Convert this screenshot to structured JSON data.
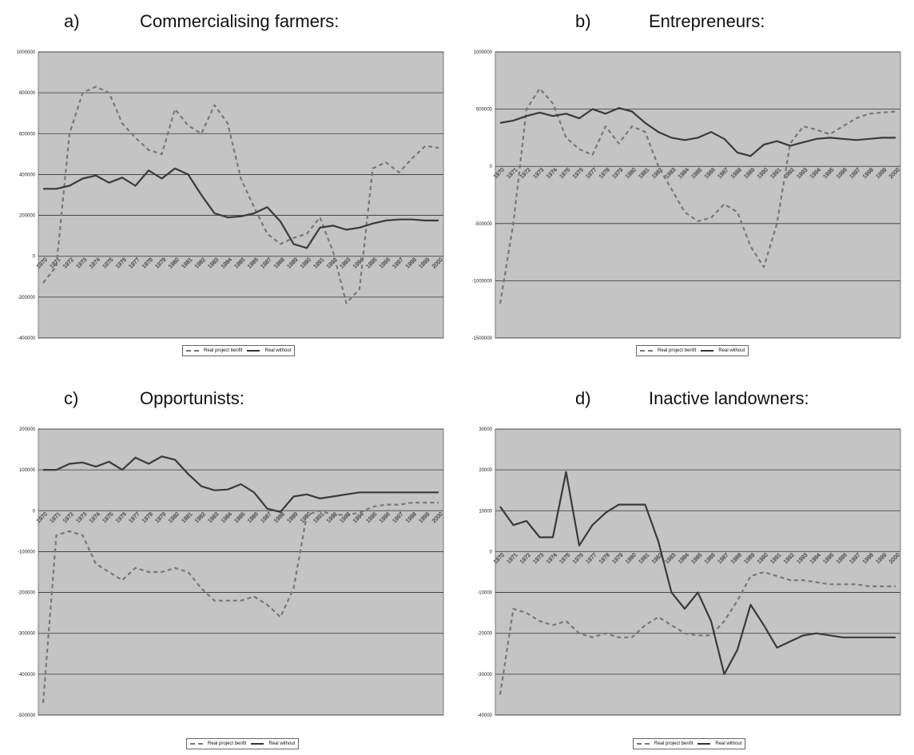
{
  "chart_data": [
    {
      "type": "line",
      "letter": "a)",
      "title": "Commercialising farmers:",
      "ylim": [
        -400000,
        1000000
      ],
      "yticks": [
        -400000,
        -200000,
        0,
        200000,
        400000,
        600000,
        800000,
        1000000
      ],
      "ytick_labels": [
        "-400000",
        "-200000",
        "0",
        "200000",
        "400000",
        "600000",
        "800000",
        "1000000"
      ],
      "x_labels": [
        "1970",
        "1971",
        "1972",
        "1973",
        "1974",
        "1975",
        "1976",
        "1977",
        "1978",
        "1979",
        "1980",
        "1981",
        "1982",
        "1983",
        "1984",
        "1985",
        "1986",
        "1987",
        "1988",
        "1989",
        "1990",
        "1991",
        "1992",
        "1993",
        "1994",
        "1995",
        "1996",
        "1997",
        "1998",
        "1999",
        "2000"
      ],
      "legend": [
        "Real project benfit",
        "Real without"
      ],
      "series": [
        {
          "name": "Real project benfit",
          "style": "dashed",
          "values": [
            -130000,
            -50000,
            600000,
            800000,
            830000,
            800000,
            650000,
            580000,
            520000,
            500000,
            720000,
            640000,
            600000,
            740000,
            650000,
            380000,
            240000,
            110000,
            60000,
            90000,
            110000,
            190000,
            20000,
            -230000,
            -160000,
            430000,
            460000,
            410000,
            480000,
            540000,
            530000
          ]
        },
        {
          "name": "Real without",
          "style": "solid",
          "values": [
            330000,
            330000,
            345000,
            380000,
            395000,
            360000,
            385000,
            345000,
            420000,
            380000,
            430000,
            400000,
            300000,
            210000,
            190000,
            195000,
            210000,
            240000,
            170000,
            60000,
            40000,
            140000,
            150000,
            130000,
            140000,
            160000,
            175000,
            180000,
            180000,
            175000,
            175000
          ]
        }
      ]
    },
    {
      "type": "line",
      "letter": "b)",
      "title": "Entrepreneurs:",
      "ylim": [
        -1500000,
        1000000
      ],
      "yticks": [
        -1500000,
        -1000000,
        -500000,
        0,
        500000,
        1000000
      ],
      "ytick_labels": [
        "-1500000",
        "-1000000",
        "-500000",
        "0",
        "500000",
        "1000000"
      ],
      "x_labels": [
        "1970",
        "1971",
        "1972",
        "1973",
        "1974",
        "1975",
        "1976",
        "1977",
        "1978",
        "1979",
        "1980",
        "1981",
        "1982",
        "1983",
        "1984",
        "1985",
        "1986",
        "1987",
        "1988",
        "1989",
        "1990",
        "1991",
        "1992",
        "1993",
        "1994",
        "1995",
        "1996",
        "1997",
        "1998",
        "1999",
        "2000"
      ],
      "legend": [
        "Real project benfit",
        "Real without"
      ],
      "series": [
        {
          "name": "Real project benfit",
          "style": "dashed",
          "values": [
            -1200000,
            -500000,
            500000,
            680000,
            550000,
            250000,
            150000,
            100000,
            350000,
            200000,
            350000,
            300000,
            0,
            -200000,
            -400000,
            -480000,
            -450000,
            -330000,
            -400000,
            -700000,
            -880000,
            -500000,
            200000,
            350000,
            320000,
            280000,
            350000,
            420000,
            460000,
            470000,
            480000
          ]
        },
        {
          "name": "Real without",
          "style": "solid",
          "values": [
            380000,
            400000,
            440000,
            470000,
            440000,
            460000,
            420000,
            500000,
            460000,
            510000,
            480000,
            380000,
            300000,
            250000,
            230000,
            250000,
            300000,
            240000,
            120000,
            90000,
            190000,
            220000,
            180000,
            210000,
            240000,
            250000,
            240000,
            230000,
            240000,
            250000,
            250000
          ]
        }
      ]
    },
    {
      "type": "line",
      "letter": "c)",
      "title": "Opportunists:",
      "ylim": [
        -500000,
        200000
      ],
      "yticks": [
        -500000,
        -400000,
        -300000,
        -200000,
        -100000,
        0,
        100000,
        200000
      ],
      "ytick_labels": [
        "-500000",
        "-400000",
        "-300000",
        "-200000",
        "-100000",
        "0",
        "100000",
        "200000"
      ],
      "x_labels": [
        "1970",
        "1971",
        "1972",
        "1973",
        "1974",
        "1975",
        "1976",
        "1977",
        "1978",
        "1979",
        "1980",
        "1981",
        "1982",
        "1983",
        "1984",
        "1985",
        "1986",
        "1987",
        "1988",
        "1989",
        "1990",
        "1991",
        "1992",
        "1993",
        "1994",
        "1995",
        "1996",
        "1997",
        "1998",
        "1999",
        "2000"
      ],
      "legend": [
        "Real project benfit",
        "Real without"
      ],
      "series": [
        {
          "name": "Real project benfit",
          "style": "dashed",
          "values": [
            -470000,
            -60000,
            -50000,
            -60000,
            -130000,
            -150000,
            -170000,
            -140000,
            -150000,
            -150000,
            -140000,
            -150000,
            -190000,
            -220000,
            -220000,
            -220000,
            -210000,
            -230000,
            -260000,
            -190000,
            -10000,
            0,
            -10000,
            -10000,
            -5000,
            10000,
            15000,
            15000,
            20000,
            20000,
            20000
          ]
        },
        {
          "name": "Real without",
          "style": "solid",
          "values": [
            100000,
            100000,
            115000,
            118000,
            108000,
            120000,
            100000,
            130000,
            115000,
            133000,
            125000,
            90000,
            60000,
            50000,
            52000,
            65000,
            45000,
            5000,
            -3000,
            35000,
            40000,
            30000,
            35000,
            40000,
            45000,
            45000,
            45000,
            45000,
            45000,
            45000,
            45000
          ]
        }
      ]
    },
    {
      "type": "line",
      "letter": "d)",
      "title": "Inactive landowners:",
      "ylim": [
        -40000,
        30000
      ],
      "yticks": [
        -40000,
        -30000,
        -20000,
        -10000,
        0,
        10000,
        20000,
        30000
      ],
      "ytick_labels": [
        "-40000",
        "-30000",
        "-20000",
        "-10000",
        "0",
        "10000",
        "20000",
        "30000"
      ],
      "x_labels": [
        "1970",
        "1971",
        "1972",
        "1973",
        "1974",
        "1975",
        "1976",
        "1977",
        "1978",
        "1979",
        "1980",
        "1981",
        "1982",
        "1983",
        "1984",
        "1985",
        "1986",
        "1987",
        "1988",
        "1989",
        "1990",
        "1991",
        "1992",
        "1993",
        "1994",
        "1995",
        "1996",
        "1997",
        "1998",
        "1999",
        "2000"
      ],
      "legend": [
        "Real project benfit",
        "Real without"
      ],
      "series": [
        {
          "name": "Real project benfit",
          "style": "dashed",
          "values": [
            -35000,
            -14000,
            -15000,
            -17000,
            -18000,
            -17000,
            -20000,
            -21000,
            -20000,
            -21000,
            -21000,
            -18000,
            -16000,
            -18000,
            -20000,
            -20500,
            -20500,
            -17000,
            -12000,
            -6000,
            -5000,
            -6000,
            -7000,
            -7000,
            -7500,
            -8000,
            -8000,
            -8000,
            -8500,
            -8500,
            -8500
          ]
        },
        {
          "name": "Real without",
          "style": "solid",
          "values": [
            11000,
            6500,
            7500,
            3500,
            3500,
            19500,
            1500,
            6500,
            9500,
            11500,
            11500,
            11500,
            2500,
            -10000,
            -14000,
            -10000,
            -17000,
            -30000,
            -24000,
            -13000,
            -18000,
            -23500,
            -22000,
            -20500,
            -20000,
            -20500,
            -21000,
            -21000,
            -21000,
            -21000,
            -21000
          ]
        }
      ]
    }
  ]
}
